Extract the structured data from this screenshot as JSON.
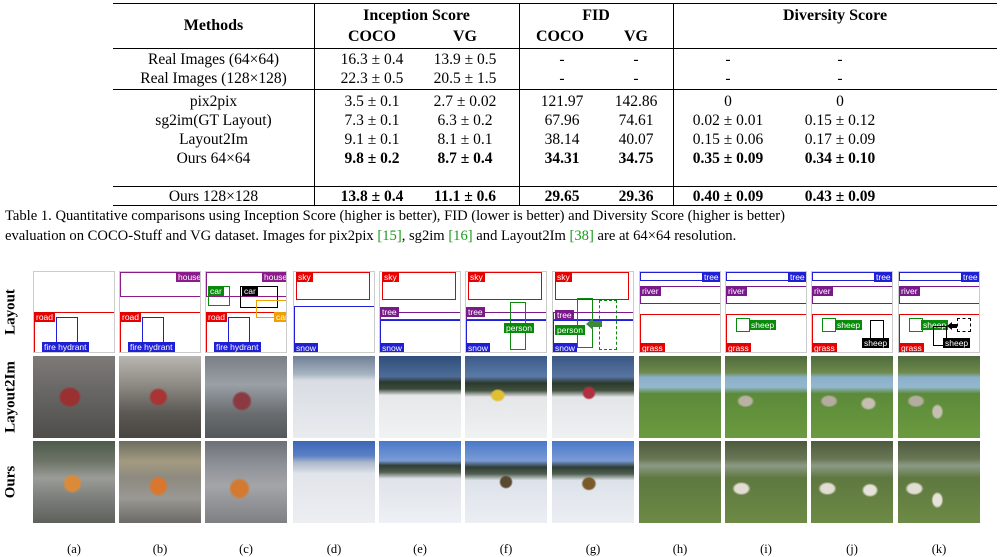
{
  "table": {
    "headers": {
      "methods": "Methods",
      "inception": "Inception Score",
      "fid": "FID",
      "diversity": "Diversity Score",
      "coco": "COCO",
      "vg": "VG"
    },
    "rows": [
      {
        "method": "Real Images (64×64)",
        "is_coco": "16.3 ± 0.4",
        "is_vg": "13.9 ± 0.5",
        "fid_coco": "-",
        "fid_vg": "-",
        "div_coco": "-",
        "div_vg": "-"
      },
      {
        "method": "Real Images (128×128)",
        "is_coco": "22.3 ± 0.5",
        "is_vg": "20.5 ± 1.5",
        "fid_coco": "-",
        "fid_vg": "-",
        "div_coco": "-",
        "div_vg": "-"
      },
      {
        "method": "pix2pix",
        "is_coco": "3.5 ± 0.1",
        "is_vg": "2.7 ± 0.02",
        "fid_coco": "121.97",
        "fid_vg": "142.86",
        "div_coco": "0",
        "div_vg": "0"
      },
      {
        "method": "sg2im(GT Layout)",
        "is_coco": "7.3 ± 0.1",
        "is_vg": "6.3 ± 0.2",
        "fid_coco": "67.96",
        "fid_vg": "74.61",
        "div_coco": "0.02 ± 0.01",
        "div_vg": "0.15 ± 0.12"
      },
      {
        "method": "Layout2Im",
        "is_coco": "9.1 ± 0.1",
        "is_vg": "8.1 ± 0.1",
        "fid_coco": "38.14",
        "fid_vg": "40.07",
        "div_coco": "0.15 ± 0.06",
        "div_vg": "0.17 ± 0.09"
      },
      {
        "method": "Ours 64×64",
        "is_coco": "9.8 ± 0.2",
        "is_vg": "8.7 ± 0.4",
        "fid_coco": "34.31",
        "fid_vg": "34.75",
        "div_coco": "0.35 ± 0.09",
        "div_vg": "0.34 ± 0.10"
      },
      {
        "method": "Ours 128×128",
        "is_coco": "13.8 ± 0.4",
        "is_vg": "11.1 ± 0.6",
        "fid_coco": "29.65",
        "fid_vg": "29.36",
        "div_coco": "0.40 ± 0.09",
        "div_vg": "0.43 ± 0.09"
      }
    ]
  },
  "caption": {
    "line1": "Table 1. Quantitative comparisons using Inception Score (higher is better), FID (lower is better) and Diversity Score (higher is better)",
    "line2_a": "evaluation on COCO-Stuff and VG dataset. Images for pix2pix ",
    "cite1": "[15]",
    "line2_b": ", sg2im ",
    "cite2": "[16]",
    "line2_c": " and Layout2Im ",
    "cite3": "[38]",
    "line2_d": " are at 64×64 resolution."
  },
  "figure": {
    "row_labels": {
      "layout": "Layout",
      "layout2im": "Layout2Im",
      "ours": "Ours"
    },
    "column_labels": [
      "(a)",
      "(b)",
      "(c)",
      "(d)",
      "(e)",
      "(f)",
      "(g)",
      "(h)",
      "(i)",
      "(j)",
      "(k)"
    ],
    "object_labels": {
      "house": "house",
      "road": "road",
      "fire_hydrant": "fire hydrant",
      "car": "car",
      "sky": "sky",
      "snow": "snow",
      "tree": "tree",
      "person": "person",
      "river": "river",
      "grass": "grass",
      "sheep": "sheep"
    },
    "colors": {
      "house": "#8b1a8b",
      "road": "#e60000",
      "fire_hydrant": "#1f1fd6",
      "car_green": "#0a8a0a",
      "car_black": "#000000",
      "car_orange": "#f0a000",
      "sky": "#e60000",
      "snow": "#1f1fd6",
      "tree": "#7a1a8a",
      "person": "#0a8a0a",
      "river": "#7a1a8a",
      "grass": "#e60000",
      "tree_blue": "#1f1fd6",
      "sheep": "#0a8a0a",
      "sheep_black": "#000000"
    }
  }
}
